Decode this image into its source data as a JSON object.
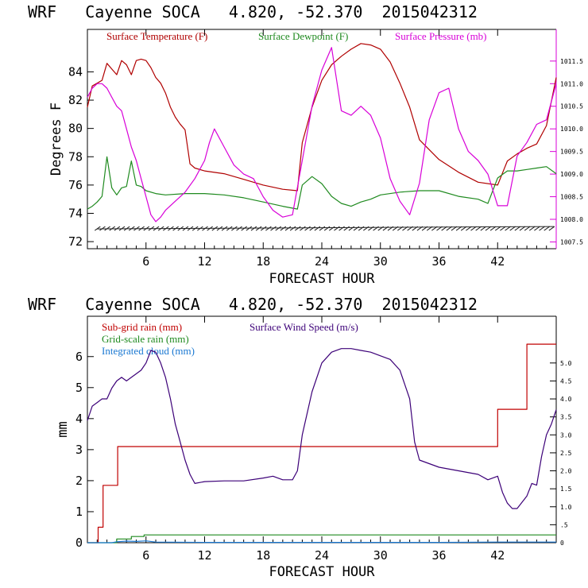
{
  "chart_data": [
    {
      "type": "line",
      "title": "WRF   Cayenne SOCA   4.820, -52.370  2015042312",
      "xlabel": "FORECAST HOUR",
      "ylabel": "Degrees F",
      "xlim": [
        0,
        48
      ],
      "ylim": [
        71.5,
        87
      ],
      "y2lim": [
        1007.35,
        1012.2
      ],
      "x_ticks": [
        6,
        12,
        18,
        24,
        30,
        36,
        42
      ],
      "y_ticks": [
        72,
        74,
        76,
        78,
        80,
        82,
        84
      ],
      "y2_ticks": [
        1007.5,
        1008.0,
        1008.5,
        1009.0,
        1009.5,
        1010.0,
        1010.5,
        1011.0,
        1011.5
      ],
      "y2_tick_labels": [
        "1007.5",
        "1008.0",
        "1008.5",
        "1009.0",
        "1009.5",
        "1010.0",
        "1010.5",
        "1011.0",
        "1011.5"
      ],
      "grid": false,
      "legend_position": "top",
      "series": [
        {
          "name": "Surface Temperature (F)",
          "color": "#b00000",
          "axis": "left",
          "x": [
            0,
            0.5,
            1,
            1.5,
            2,
            2.5,
            3,
            3.5,
            4,
            4.5,
            5,
            5.5,
            6,
            6.5,
            7,
            7.5,
            8,
            8.5,
            9,
            9.5,
            10,
            10.5,
            11,
            12,
            14,
            16,
            18,
            20,
            21.5,
            22,
            23,
            24,
            25,
            26,
            27,
            28,
            29,
            30,
            31,
            32,
            33,
            34,
            36,
            38,
            40,
            42,
            43,
            44,
            45,
            46,
            47,
            48
          ],
          "values": [
            81.5,
            83,
            83.2,
            83.4,
            84.6,
            84.2,
            83.8,
            84.8,
            84.5,
            83.8,
            84.8,
            84.9,
            84.8,
            84.3,
            83.6,
            83.2,
            82.5,
            81.5,
            80.8,
            80.3,
            79.9,
            77.5,
            77.2,
            77.0,
            76.8,
            76.4,
            76.0,
            75.7,
            75.6,
            79.0,
            81.5,
            83.4,
            84.5,
            85.1,
            85.6,
            86.0,
            85.9,
            85.6,
            84.7,
            83.2,
            81.5,
            79.2,
            77.8,
            76.9,
            76.2,
            76.0,
            77.7,
            78.2,
            78.6,
            78.9,
            80.2,
            83.6
          ]
        },
        {
          "name": "Surface Dewpoint (F)",
          "color": "#1f8a1f",
          "axis": "left",
          "x": [
            0,
            0.5,
            1,
            1.5,
            2,
            2.5,
            3,
            3.5,
            4,
            4.5,
            5,
            5.5,
            6,
            7,
            8,
            10,
            12,
            14,
            16,
            18,
            20,
            21.5,
            22,
            23,
            24,
            25,
            26,
            27,
            28,
            29,
            30,
            32,
            34,
            36,
            38,
            40,
            41,
            42,
            43,
            44,
            45,
            46,
            47,
            48
          ],
          "values": [
            74.3,
            74.5,
            74.8,
            75.2,
            78.0,
            75.8,
            75.3,
            75.8,
            75.9,
            77.7,
            76.0,
            75.9,
            75.6,
            75.4,
            75.3,
            75.4,
            75.4,
            75.3,
            75.1,
            74.8,
            74.5,
            74.3,
            76.0,
            76.6,
            76.1,
            75.2,
            74.7,
            74.5,
            74.8,
            75.0,
            75.3,
            75.5,
            75.6,
            75.6,
            75.2,
            75.0,
            74.7,
            76.5,
            77.0,
            77.0,
            77.1,
            77.2,
            77.3,
            76.8
          ]
        },
        {
          "name": "Surface Pressure (mb)",
          "color": "#d800d8",
          "axis": "right",
          "x": [
            0,
            0.5,
            1,
            1.5,
            2,
            2.5,
            3,
            3.5,
            4,
            4.5,
            5,
            5.5,
            6,
            6.5,
            7,
            7.5,
            8,
            9,
            10,
            11,
            12,
            12.5,
            13,
            14,
            15,
            16,
            17,
            18,
            19,
            20,
            21,
            22,
            23,
            24,
            25,
            26,
            27,
            28,
            29,
            30,
            31,
            32,
            33,
            34,
            35,
            36,
            37,
            38,
            39,
            40,
            41,
            42,
            43,
            44,
            45,
            46,
            47,
            48
          ],
          "values": [
            1010.7,
            1010.9,
            1011.0,
            1011.0,
            1010.9,
            1010.7,
            1010.5,
            1010.4,
            1010.0,
            1009.6,
            1009.3,
            1008.9,
            1008.5,
            1008.1,
            1007.95,
            1008.05,
            1008.2,
            1008.4,
            1008.6,
            1008.9,
            1009.3,
            1009.7,
            1010.0,
            1009.6,
            1009.2,
            1009.0,
            1008.9,
            1008.5,
            1008.2,
            1008.05,
            1008.1,
            1009.3,
            1010.5,
            1011.3,
            1011.8,
            1010.4,
            1010.3,
            1010.5,
            1010.3,
            1009.8,
            1008.9,
            1008.4,
            1008.1,
            1008.8,
            1010.2,
            1010.8,
            1010.9,
            1010.0,
            1009.5,
            1009.3,
            1009.0,
            1008.3,
            1008.3,
            1009.4,
            1009.7,
            1010.1,
            1010.2,
            1011.0
          ]
        }
      ],
      "wind_barbs_y": 72.9
    },
    {
      "type": "line",
      "title": "WRF   Cayenne SOCA   4.820, -52.370  2015042312",
      "xlabel": "FORECAST HOUR",
      "ylabel": "mm",
      "xlim": [
        0,
        48
      ],
      "ylim": [
        0,
        7.3
      ],
      "y2lim": [
        0,
        6.3
      ],
      "x_ticks": [
        6,
        12,
        18,
        24,
        30,
        36,
        42
      ],
      "y_ticks": [
        0,
        1,
        2,
        3,
        4,
        5,
        6
      ],
      "y2_ticks": [
        0,
        0.5,
        1.0,
        1.5,
        2.0,
        2.5,
        3.0,
        3.5,
        4.0,
        4.5,
        5.0
      ],
      "y2_tick_labels": [
        "0",
        ".5",
        "1.0",
        "1.5",
        "2.0",
        "2.5",
        "3.0",
        "3.5",
        "4.0",
        "4.5",
        "5.0"
      ],
      "grid": false,
      "legend_position": "top",
      "series": [
        {
          "name": "Sub-grid rain (mm)",
          "color": "#c00000",
          "axis": "left",
          "step": true,
          "x": [
            0,
            0.8,
            1.1,
            1.6,
            2.8,
            3.1,
            3.9,
            4.3,
            42.0,
            45.0,
            48.0
          ],
          "values": [
            0,
            0,
            0.5,
            1.85,
            1.85,
            3.1,
            3.1,
            3.1,
            4.3,
            6.4,
            6.4
          ]
        },
        {
          "name": "Grid-scale rain (mm)",
          "color": "#1f8a1f",
          "axis": "left",
          "step": true,
          "x": [
            0,
            2.2,
            3.0,
            4.5,
            5.8,
            48.0
          ],
          "values": [
            0,
            0,
            0.12,
            0.2,
            0.25,
            0.25
          ]
        },
        {
          "name": "Integrated cloud (mm)",
          "color": "#1a78d2",
          "axis": "left",
          "x": [
            0,
            2.5,
            3,
            4,
            5,
            6,
            7,
            12,
            18,
            24,
            30,
            36,
            42,
            48
          ],
          "values": [
            0,
            0,
            0.03,
            0.05,
            0.04,
            0.06,
            0.02,
            0.01,
            0.01,
            0.01,
            0.01,
            0.01,
            0.02,
            0.02
          ]
        },
        {
          "name": "Surface Wind Speed (m/s)",
          "color": "#3c0078",
          "axis": "right",
          "x": [
            0,
            0.5,
            1,
            1.5,
            2,
            2.5,
            3,
            3.5,
            4,
            4.5,
            5,
            5.5,
            6,
            6.5,
            7,
            7.5,
            8,
            8.5,
            9,
            9.5,
            10,
            10.5,
            11,
            12,
            14,
            16,
            18,
            19,
            20,
            21,
            21.5,
            22,
            23,
            24,
            25,
            26,
            27,
            28,
            29,
            30,
            31,
            32,
            33,
            33.5,
            34,
            35,
            36,
            38,
            40,
            41,
            42,
            42.5,
            43,
            43.5,
            44,
            45,
            45.5,
            46,
            46.5,
            47,
            47.5,
            48
          ],
          "values": [
            3.4,
            3.8,
            3.9,
            4.0,
            4.0,
            4.3,
            4.5,
            4.6,
            4.5,
            4.6,
            4.7,
            4.8,
            5.0,
            5.35,
            5.3,
            5.0,
            4.6,
            4.0,
            3.3,
            2.8,
            2.3,
            1.9,
            1.65,
            1.7,
            1.72,
            1.72,
            1.8,
            1.85,
            1.75,
            1.75,
            2.0,
            3.0,
            4.2,
            5.0,
            5.3,
            5.4,
            5.4,
            5.35,
            5.3,
            5.2,
            5.1,
            4.8,
            4.0,
            2.8,
            2.3,
            2.2,
            2.1,
            2.0,
            1.9,
            1.75,
            1.85,
            1.4,
            1.1,
            0.95,
            0.95,
            1.3,
            1.65,
            1.6,
            2.4,
            3.0,
            3.3,
            3.7
          ]
        }
      ]
    }
  ]
}
